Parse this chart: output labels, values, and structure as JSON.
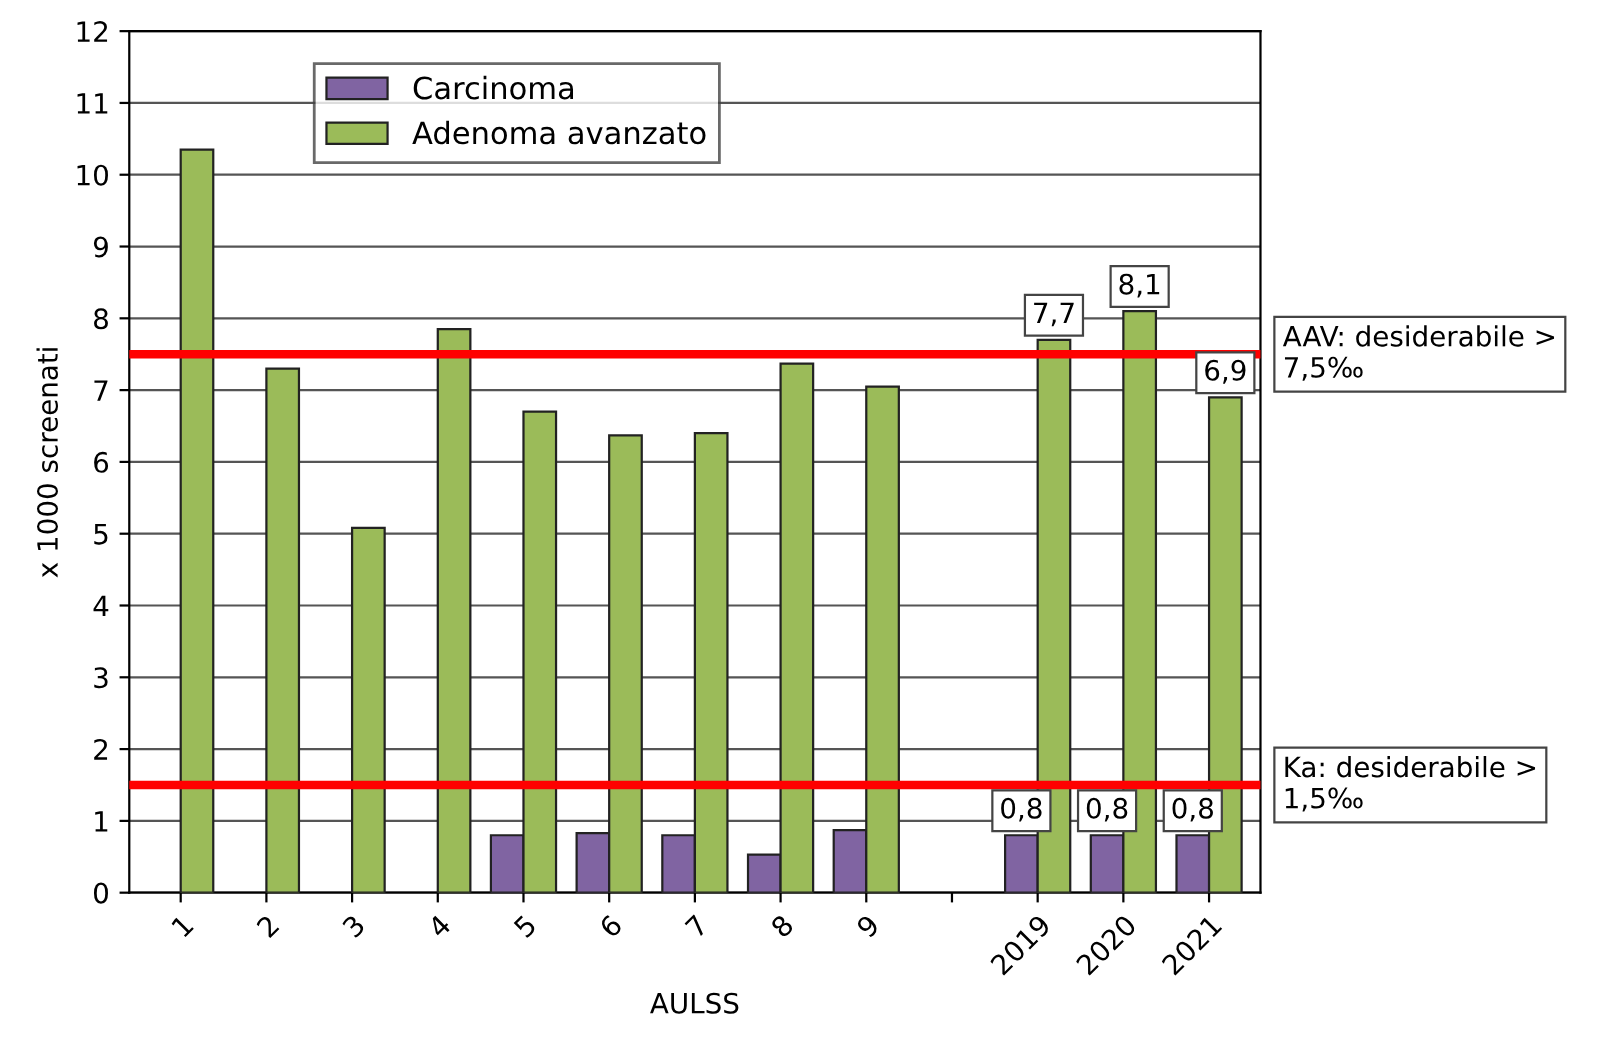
{
  "chart_data": {
    "type": "bar",
    "xlabel": "AULSS",
    "ylabel": "x 1000 screenati",
    "categories": [
      "1",
      "2",
      "3",
      "4",
      "5",
      "6",
      "7",
      "8",
      "9",
      null,
      "2019",
      "2020",
      "2021"
    ],
    "series": [
      {
        "name": "Carcinoma",
        "color": "#8064a2",
        "values": [
          null,
          null,
          null,
          null,
          0.8,
          0.83,
          0.8,
          0.53,
          0.87,
          null,
          0.8,
          0.8,
          0.8
        ],
        "value_labels": [
          null,
          null,
          null,
          null,
          null,
          null,
          null,
          null,
          null,
          null,
          "0,8",
          "0,8",
          "0,8"
        ]
      },
      {
        "name": "Adenoma avanzato",
        "color": "#9bbb59",
        "values": [
          10.35,
          7.3,
          5.08,
          7.85,
          6.7,
          6.37,
          6.4,
          7.37,
          7.05,
          null,
          7.7,
          8.1,
          6.9
        ],
        "value_labels": [
          null,
          null,
          null,
          null,
          null,
          null,
          null,
          null,
          null,
          null,
          "7,7",
          "8,1",
          "6,9"
        ]
      }
    ],
    "ylim": [
      0,
      12
    ],
    "yticks": [
      0,
      1,
      2,
      3,
      4,
      5,
      6,
      7,
      8,
      9,
      10,
      11,
      12
    ],
    "grid": "y",
    "legend": "top left",
    "ref_lines": [
      {
        "axis": "y",
        "value": 7.5,
        "label": "AAV: desiderabile > 7,5‰",
        "color": "#ff0000"
      },
      {
        "axis": "y",
        "value": 1.5,
        "label": "Ka: desiderabile > 1,5‰",
        "color": "#ff0000"
      }
    ]
  }
}
